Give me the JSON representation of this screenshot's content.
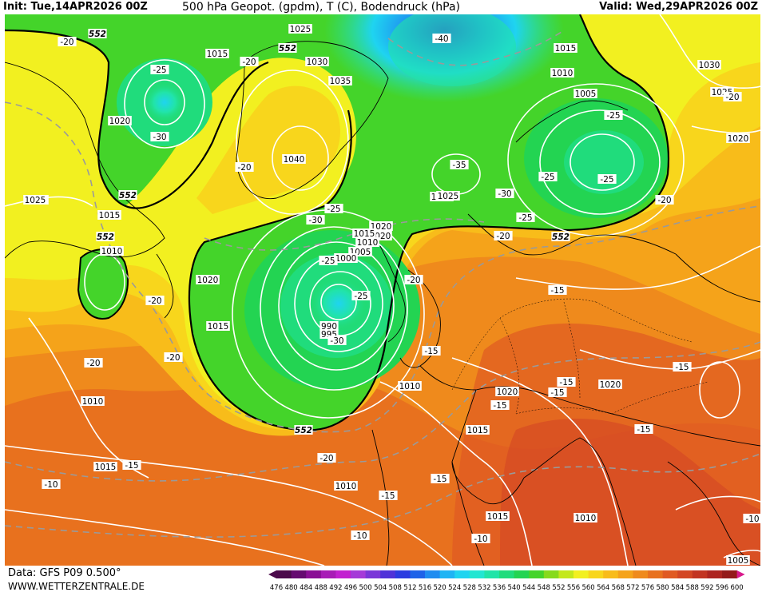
{
  "header": {
    "init": "Init: Tue,14APR2026 00Z",
    "title": "500 hPa Geopot. (gpdm), T (C), Bodendruck (hPa)",
    "valid": "Valid: Wed,29APR2026 00Z"
  },
  "footer": {
    "data_source": "Data: GFS P09 0.500°",
    "website": "WWW.WETTERZENTRALE.DE"
  },
  "scale": {
    "values": [
      476,
      480,
      484,
      488,
      492,
      496,
      500,
      504,
      508,
      512,
      516,
      520,
      524,
      528,
      532,
      536,
      540,
      544,
      548,
      552,
      556,
      560,
      564,
      568,
      572,
      576,
      580,
      584,
      588,
      592,
      596,
      600
    ],
    "colors": [
      "#4b0a4b",
      "#650a70",
      "#8a0e95",
      "#a81cb6",
      "#c220d0",
      "#a53ad8",
      "#7a36d8",
      "#4f32d8",
      "#2b3be0",
      "#1e62e8",
      "#1f8cf0",
      "#1eb4f4",
      "#1fd4f0",
      "#22e6d2",
      "#21e4a8",
      "#20dc7c",
      "#23d452",
      "#44d42a",
      "#86da1c",
      "#c4e81c",
      "#f2f020",
      "#f8d61c",
      "#f8bc1a",
      "#f5a31a",
      "#ef8a1c",
      "#e8711e",
      "#e05a22",
      "#d34624",
      "#c23422",
      "#ad2420",
      "#941a1a",
      "#d81a8c"
    ]
  },
  "map": {
    "heights_labels": [
      "552",
      "552",
      "552",
      "552",
      "552",
      "552"
    ],
    "pressure_labels": [
      "1025",
      "1015",
      "1030",
      "1035",
      "1040",
      "1015",
      "1010",
      "1005",
      "1030",
      "1025",
      "1020",
      "1020",
      "1015",
      "1015",
      "1010",
      "1020",
      "1015",
      "1030",
      "1025",
      "1020",
      "1015",
      "1010",
      "1005",
      "1000",
      "990",
      "995",
      "1025",
      "1020",
      "1010",
      "1020",
      "1015",
      "1010",
      "1015",
      "1010",
      "1015",
      "1010",
      "1020",
      "1005"
    ],
    "temperature_labels": [
      "-20",
      "-25",
      "-20",
      "-30",
      "-25",
      "-40",
      "-20",
      "-25",
      "-35",
      "-25",
      "-25",
      "-30",
      "-25",
      "-20",
      "-20",
      "-20",
      "-30",
      "-25",
      "-25",
      "-20",
      "-20",
      "-20",
      "-15",
      "-30",
      "-20",
      "-15",
      "-15",
      "-15",
      "-15",
      "-15",
      "-15",
      "-15",
      "-10",
      "-15",
      "-10",
      "-10",
      "-10",
      "-15",
      "-20"
    ]
  },
  "colors": {
    "contour": "#ffffff",
    "coast": "#000000",
    "iso552": "#000000",
    "temp_dash": "#9a9a9a"
  }
}
